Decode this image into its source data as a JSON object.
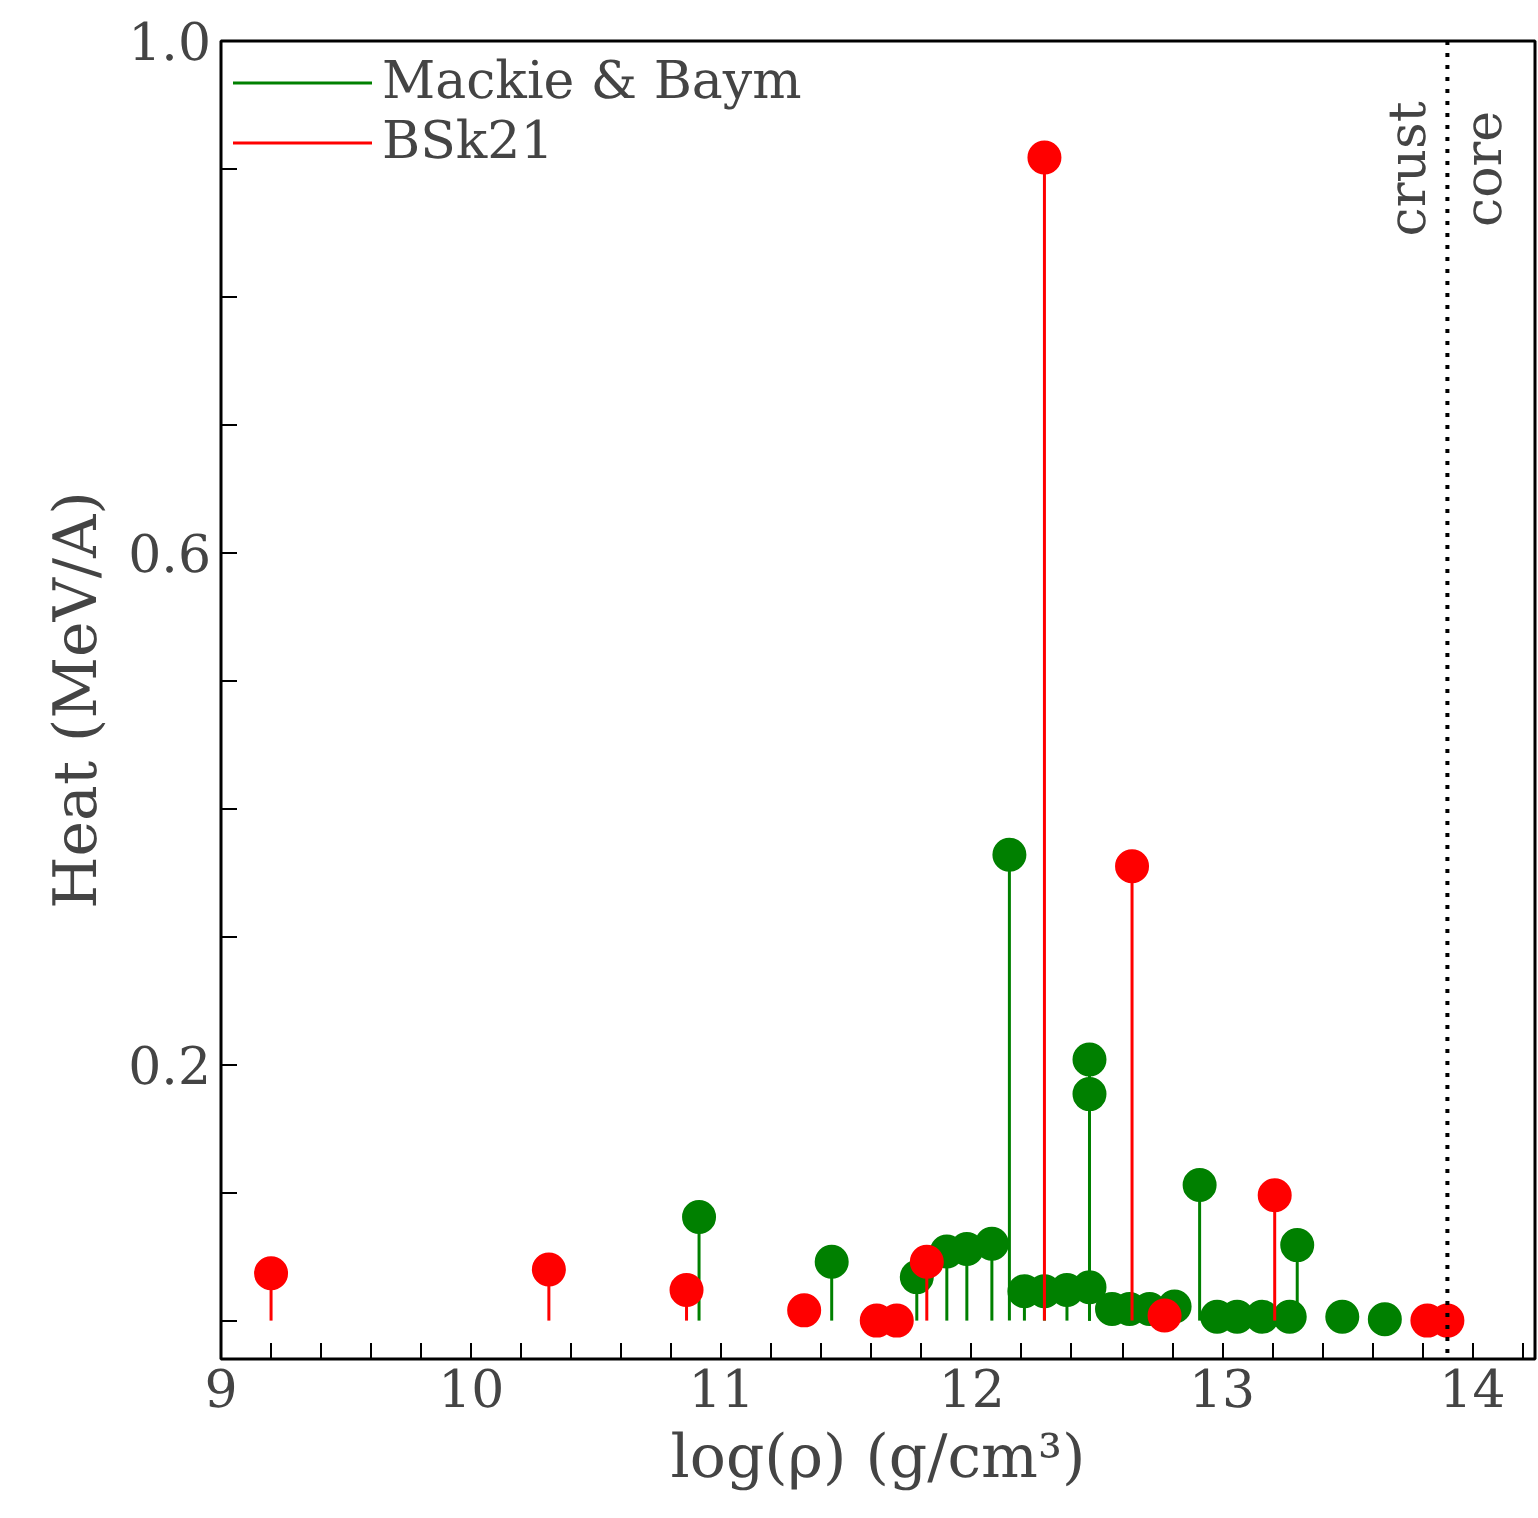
{
  "chart_data": {
    "type": "lollipop",
    "xlabel": "log(ρ) (g/cm³)",
    "ylabel": "Heat (MeV/A)",
    "xlim": [
      9.0,
      14.25
    ],
    "ylim": [
      -0.03,
      1.0
    ],
    "xticks": [
      9,
      {
        "value": 9.2,
        "label": null
      },
      {
        "value": 9.4,
        "label": null
      },
      {
        "value": 9.6,
        "label": null
      },
      {
        "value": 9.8,
        "label": null
      },
      10,
      {
        "value": 10.2,
        "label": null
      },
      {
        "value": 10.4,
        "label": null
      },
      {
        "value": 10.6,
        "label": null
      },
      {
        "value": 10.8,
        "label": null
      },
      11,
      {
        "value": 11.2,
        "label": null
      },
      {
        "value": 11.4,
        "label": null
      },
      {
        "value": 11.6,
        "label": null
      },
      {
        "value": 11.8,
        "label": null
      },
      12,
      {
        "value": 12.2,
        "label": null
      },
      {
        "value": 12.4,
        "label": null
      },
      {
        "value": 12.6,
        "label": null
      },
      {
        "value": 12.8,
        "label": null
      },
      13,
      {
        "value": 13.2,
        "label": null
      },
      {
        "value": 13.4,
        "label": null
      },
      {
        "value": 13.6,
        "label": null
      },
      {
        "value": 13.8,
        "label": null
      },
      14,
      {
        "value": 14.2,
        "label": null
      }
    ],
    "yticks": [
      {
        "value": 0.0,
        "label": null
      },
      {
        "value": 0.1,
        "label": null
      },
      0.2,
      {
        "value": 0.3,
        "label": null
      },
      {
        "value": 0.4,
        "label": null
      },
      {
        "value": 0.5,
        "label": null
      },
      0.6,
      {
        "value": 0.7,
        "label": null
      },
      {
        "value": 0.8,
        "label": null
      },
      {
        "value": 0.9,
        "label": null
      },
      {
        "value": 1.0,
        "label": "1.0"
      }
    ],
    "grid": false,
    "legend": "top left",
    "marker": "circle",
    "series": [
      {
        "name": "Mackie & Baym",
        "color": "#008000",
        "x": [
          10.91,
          11.44,
          11.78,
          11.9,
          11.98,
          12.08,
          12.15,
          12.21,
          12.29,
          12.38,
          12.47,
          12.47,
          12.47,
          12.56,
          12.63,
          12.71,
          12.81,
          12.91,
          12.98,
          13.06,
          13.16,
          13.27,
          13.3,
          13.48,
          13.65
        ],
        "values": [
          0.081,
          0.046,
          0.034,
          0.054,
          0.056,
          0.06,
          0.364,
          0.023,
          0.023,
          0.024,
          0.026,
          0.177,
          0.204,
          0.009,
          0.009,
          0.009,
          0.011,
          0.106,
          0.003,
          0.003,
          0.003,
          0.003,
          0.059,
          0.003,
          0.001
        ]
      },
      {
        "name": "BSk21",
        "color": "#ff0000",
        "x": [
          9.2,
          10.31,
          10.86,
          11.33,
          11.62,
          11.7,
          11.82,
          12.29,
          12.64,
          12.77,
          13.21,
          13.82,
          13.9
        ],
        "values": [
          0.037,
          0.04,
          0.024,
          0.008,
          0.0,
          0.0,
          0.046,
          0.909,
          0.355,
          0.004,
          0.098,
          0.0,
          0.0
        ]
      }
    ],
    "ref_lines": [
      {
        "axis": "x",
        "value": 13.9,
        "label": null,
        "color": "#000000",
        "line_style": "dotted"
      }
    ],
    "annotations": [
      {
        "text": "crust",
        "x": 13.9,
        "y": 0.9
      },
      {
        "text": "core",
        "x": 13.9,
        "y": 0.9
      }
    ]
  }
}
